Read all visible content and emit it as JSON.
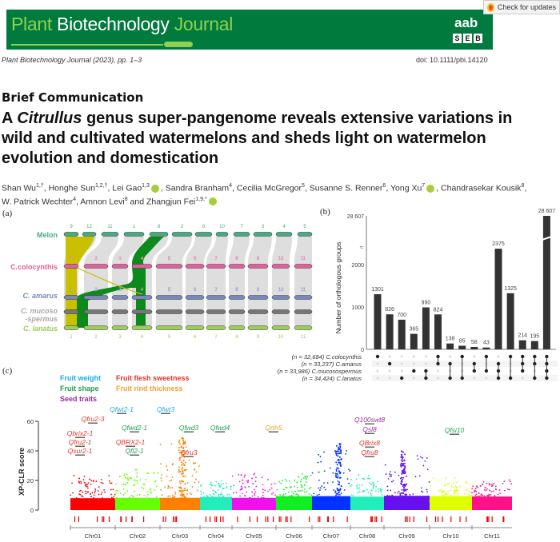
{
  "header": {
    "journal_part1": "Plant",
    "journal_part2": "Biotechnology",
    "journal_part3": "Journal",
    "logo_top": "aab",
    "logo_letters": [
      "S",
      "E",
      "B"
    ],
    "check_updates": "Check for updates",
    "citation": "Plant Biotechnology Journal (2023), pp. 1–3",
    "doi": "doi: 10.1111/pbi.14120"
  },
  "article": {
    "section": "Brief Communication",
    "title_pre": "A ",
    "title_italic": "Citrullus",
    "title_post": " genus super-pangenome reveals extensive variations in wild and cultivated watermelons and sheds light on watermelon evolution and domestication",
    "authors": [
      {
        "name": "Shan Wu",
        "sup": "1,†"
      },
      {
        "name": "Honghe Sun",
        "sup": "1,2,†"
      },
      {
        "name": "Lei Gao",
        "sup": "1,3",
        "orcid": true
      },
      {
        "name": "Sandra Branham",
        "sup": "4"
      },
      {
        "name": "Cecilia McGregor",
        "sup": "5"
      },
      {
        "name": "Susanne S. Renner",
        "sup": "6"
      },
      {
        "name": "Yong Xu",
        "sup": "7",
        "orcid": true
      },
      {
        "name": "Chandrasekar Kousik",
        "sup": "8"
      },
      {
        "name": "W. Patrick Wechter",
        "sup": "4"
      },
      {
        "name": "Amnon Levi",
        "sup": "8"
      },
      {
        "name": "Zhangjun Fei",
        "sup": "1,9,*",
        "orcid": true
      }
    ],
    "and": "and"
  },
  "figure": {
    "panel_a": {
      "label": "(a)",
      "genomes": [
        {
          "name": "Melon",
          "color": "#4aa882",
          "chroms": [
            "9",
            "12",
            "11",
            "1",
            "8",
            "2",
            "6",
            "10",
            "7",
            "3",
            "4",
            "5"
          ]
        },
        {
          "name": "C.colocynthis",
          "color": "#e0609a",
          "chroms": [
            "1",
            "2",
            "3",
            "4",
            "5",
            "6",
            "7",
            "8",
            "9",
            "10",
            "11"
          ]
        },
        {
          "name": "C. amarus",
          "color": "#7888b8",
          "chroms": [
            "1",
            "2",
            "3",
            "4",
            "5",
            "6",
            "7",
            "8",
            "9",
            "10",
            "11"
          ]
        },
        {
          "name": "C. mucoso",
          "name2": "-spermus",
          "color": "#a8a8a8",
          "chroms": [
            "1",
            "2",
            "3",
            "4",
            "5",
            "6",
            "7",
            "8",
            "9",
            "10",
            "11"
          ]
        },
        {
          "name": "C. lanatus",
          "color": "#9ccc5a",
          "chroms": [
            "1",
            "2",
            "3",
            "4",
            "5",
            "6",
            "7",
            "8",
            "9",
            "10",
            "11"
          ]
        }
      ]
    },
    "chart_data": [
      {
        "type": "bar",
        "panel": "(b)",
        "ylabel": "Number of orthologous groups",
        "yticks": [
          "0",
          "1000",
          "2000",
          "28 607"
        ],
        "ylim": [
          0,
          28607
        ],
        "axis_break": true,
        "values": [
          1301,
          826,
          700,
          365,
          990,
          824,
          138,
          85,
          58,
          43,
          2375,
          1325,
          214,
          195,
          28607
        ],
        "value_labels": [
          "1301",
          "826",
          "700",
          "365",
          "990",
          "824",
          "138",
          "85",
          "58",
          "43",
          "2375",
          "1325",
          "214",
          "195",
          "28 607"
        ],
        "sets": [
          {
            "n": "(n = 32,684)",
            "name": "C.colocynthis"
          },
          {
            "n": "(n = 33,237)",
            "name": "C.amarus"
          },
          {
            "n": "(n = 33,986)",
            "name": "C.mucosospermus"
          },
          {
            "n": "(n = 34,424)",
            "name": "C.lanatus"
          }
        ],
        "membership": [
          [
            0
          ],
          [
            1
          ],
          [
            3
          ],
          [
            2
          ],
          [
            2,
            3
          ],
          [
            0,
            1
          ],
          [
            1,
            3
          ],
          [
            0,
            3
          ],
          [
            1,
            2
          ],
          [
            0,
            2
          ],
          [
            1,
            2,
            3
          ],
          [
            0,
            3
          ],
          [
            0,
            1,
            2
          ],
          [
            0,
            1,
            3
          ],
          [
            0,
            1,
            2,
            3
          ]
        ]
      },
      {
        "type": "scatter",
        "panel": "(c)",
        "ylabel": "XP-CLR score",
        "yticks": [
          "0",
          "20",
          "40",
          "60"
        ],
        "ylim": [
          0,
          60
        ],
        "categories": [
          "Chr01",
          "Chr02",
          "Chr03",
          "Chr04",
          "Chr05",
          "Chr06",
          "Chr07",
          "Chr08",
          "Chr09",
          "Chr10",
          "Chr11"
        ],
        "chrom_colors": [
          "#ff0000",
          "#66ff00",
          "#ff8000",
          "#22eebb",
          "#ee11ee",
          "#11ee22",
          "#0033ff",
          "#22eebb",
          "#6611ee",
          "#ddff00",
          "#ff1188"
        ],
        "approx_peak_scores": [
          22,
          27,
          49,
          18,
          24,
          23,
          45,
          23,
          40,
          20,
          18
        ],
        "legend": [
          {
            "label": "Fruit weight",
            "color": "#1ca8e8"
          },
          {
            "label": "Fruit flesh sweetness",
            "color": "#e8332a"
          },
          {
            "label": "Fruit shape",
            "color": "#1aa64a"
          },
          {
            "label": "Fruit rind thickness",
            "color": "#f5a12a"
          },
          {
            "label": "Seed traits",
            "color": "#9a2ea8"
          }
        ],
        "qtls": [
          {
            "label": "Qfwt2-1",
            "trait": 0
          },
          {
            "label": "Qfwt3",
            "trait": 0
          },
          {
            "label": "Qfru2-3",
            "trait": 1
          },
          {
            "label": "Qfwd2-1",
            "trait": 2
          },
          {
            "label": "Qbrix2-1",
            "trait": 1
          },
          {
            "label": "Qfru2-1",
            "trait": 1
          },
          {
            "label": "Qsur2-1",
            "trait": 1
          },
          {
            "label": "QBRX2-1",
            "trait": 1
          },
          {
            "label": "Qfl2-1",
            "trait": 2
          },
          {
            "label": "Qfwd3",
            "trait": 2
          },
          {
            "label": "Qfwd4",
            "trait": 2
          },
          {
            "label": "Qfru3",
            "trait": 1
          },
          {
            "label": "Qrth5",
            "trait": 3
          },
          {
            "label": "Q100swt8",
            "trait": 4
          },
          {
            "label": "Qsl8",
            "trait": 4
          },
          {
            "label": "QBrix8",
            "trait": 1
          },
          {
            "label": "Qfru8",
            "trait": 1
          },
          {
            "label": "Qfsi10",
            "trait": 2
          }
        ]
      }
    ]
  }
}
